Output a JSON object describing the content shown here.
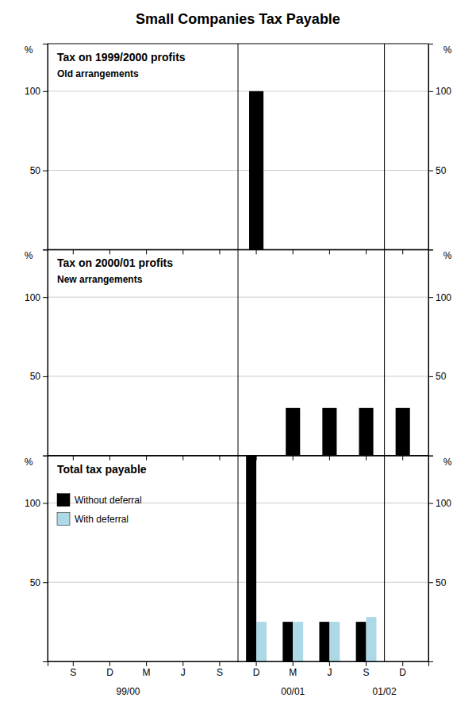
{
  "title": "Small Companies Tax Payable",
  "chart_data": [
    {
      "type": "bar",
      "title": "Tax on 1999/2000 profits",
      "subtitle": "Old arrangements",
      "ylabel": "%",
      "categories": [
        "S",
        "D",
        "M",
        "J",
        "S",
        "D",
        "M",
        "J",
        "S",
        "D"
      ],
      "values": [
        0,
        0,
        0,
        0,
        0,
        100,
        0,
        0,
        0,
        0
      ],
      "color": "#000000",
      "ylim": [
        0,
        130
      ],
      "yticks": [
        50,
        100
      ],
      "grid": true,
      "tick_labels": "y",
      "vlines": [
        4.5,
        8.5
      ]
    },
    {
      "type": "bar",
      "title": "Tax on 2000/01 profits",
      "subtitle": "New arrangements",
      "ylabel": "%",
      "categories": [
        "S",
        "D",
        "M",
        "J",
        "S",
        "D",
        "M",
        "J",
        "S",
        "D"
      ],
      "values": [
        0,
        0,
        0,
        0,
        0,
        0,
        30,
        30,
        30,
        30
      ],
      "color": "#000000",
      "ylim": [
        0,
        130
      ],
      "yticks": [
        50,
        100
      ],
      "grid": true,
      "tick_labels": "y",
      "vlines": [
        4.5,
        8.5
      ]
    },
    {
      "type": "bar",
      "title": "Total tax payable",
      "ylabel": "%",
      "categories": [
        "S",
        "D",
        "M",
        "J",
        "S",
        "D",
        "M",
        "J",
        "S",
        "D"
      ],
      "series": [
        {
          "name": "Without deferral",
          "color": "#000000",
          "values": [
            0,
            0,
            0,
            0,
            0,
            130,
            25,
            25,
            25,
            0
          ]
        },
        {
          "name": "With deferral",
          "color": "#add8e6",
          "values": [
            0,
            0,
            0,
            0,
            0,
            25,
            25,
            25,
            28,
            0
          ]
        }
      ],
      "ylim": [
        0,
        130
      ],
      "yticks": [
        50,
        100
      ],
      "grid": true,
      "legend": "upper left",
      "vlines": [
        4.5,
        8.5
      ],
      "annotations": [
        {
          "text": "99/00",
          "x": 1.5
        },
        {
          "text": "00/01",
          "x": 6.0
        },
        {
          "text": "01/02",
          "x": 8.5
        }
      ]
    }
  ]
}
